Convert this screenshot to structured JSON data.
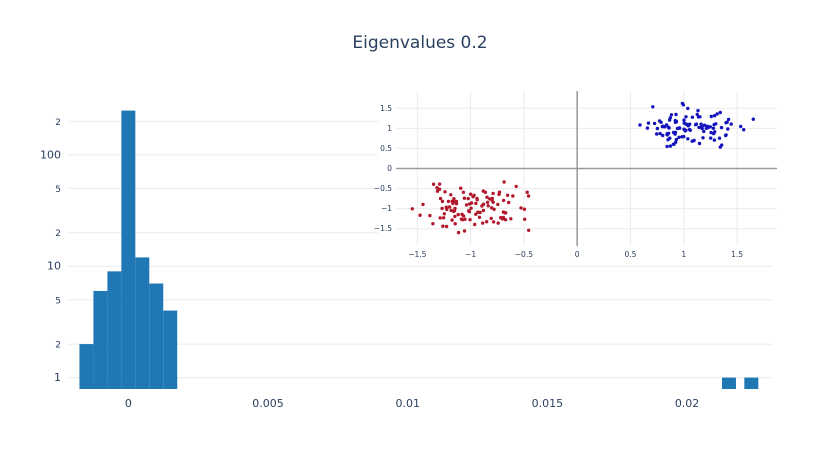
{
  "title": "Eigenvalues 0.2",
  "colors": {
    "background": "#ffffff",
    "title_text": "#2a3f5f",
    "tick_text": "#2a3f5f",
    "grid": "#ebebeb",
    "zero_line": "#999999",
    "bar": "#1f77b4",
    "cluster_negative": "#b2182b",
    "cluster_positive": "#1414bd"
  },
  "chart_data": [
    {
      "type": "bar",
      "name": "eigenvalue-histogram",
      "title": "Eigenvalues 0.2",
      "orientation": "vertical",
      "y_scale": "log",
      "grid": "horizontal-only",
      "legend": "none",
      "bar_color": "#1f77b4",
      "bin_width": 0.0005,
      "bin_centers": [
        -0.0015,
        -0.001,
        -0.0005,
        0,
        0.0005,
        0.001,
        0.0015,
        0.0215,
        0.0223
      ],
      "counts": [
        2,
        6,
        9,
        250,
        12,
        7,
        4,
        1,
        1
      ],
      "xlim": [
        -0.00216,
        0.02304
      ],
      "ylim": [
        0.79,
        345
      ],
      "x_ticks": [
        {
          "value": 0,
          "label": "0"
        },
        {
          "value": 0.005,
          "label": "0.005"
        },
        {
          "value": 0.01,
          "label": "0.01"
        },
        {
          "value": 0.015,
          "label": "0.015"
        },
        {
          "value": 0.02,
          "label": "0.02"
        }
      ],
      "y_ticks": [
        {
          "value": 1,
          "label": "1",
          "major": true
        },
        {
          "value": 2,
          "label": "2",
          "major": false
        },
        {
          "value": 5,
          "label": "5",
          "major": false
        },
        {
          "value": 10,
          "label": "10",
          "major": true
        },
        {
          "value": 20,
          "label": "2",
          "major": false
        },
        {
          "value": 50,
          "label": "5",
          "major": false
        },
        {
          "value": 100,
          "label": "100",
          "major": true
        },
        {
          "value": 200,
          "label": "2",
          "major": false
        }
      ]
    },
    {
      "type": "scatter",
      "name": "two-cluster-inset",
      "grid": "both",
      "legend": "none",
      "zero_lines": true,
      "marker_diameter": 3.4,
      "xlim": [
        -1.7,
        1.875
      ],
      "ylim": [
        -1.93,
        1.93
      ],
      "x_ticks": [
        {
          "value": -1.5,
          "label": "−1.5"
        },
        {
          "value": -1,
          "label": "−1"
        },
        {
          "value": -0.5,
          "label": "−0.5"
        },
        {
          "value": 0,
          "label": "0"
        },
        {
          "value": 0.5,
          "label": "0.5"
        },
        {
          "value": 1,
          "label": "1"
        },
        {
          "value": 1.5,
          "label": "1.5"
        }
      ],
      "y_ticks": [
        {
          "value": -1.5,
          "label": "−1.5"
        },
        {
          "value": -1,
          "label": "−1"
        },
        {
          "value": -0.5,
          "label": "−0.5"
        },
        {
          "value": 0,
          "label": "0"
        },
        {
          "value": 0.5,
          "label": "0.5"
        },
        {
          "value": 1,
          "label": "1"
        },
        {
          "value": 1.5,
          "label": "1.5"
        }
      ],
      "series": [
        {
          "name": "cluster-negative",
          "color": "#b2182b",
          "center": [
            -0.98,
            -1.0
          ],
          "std": [
            0.24,
            0.27
          ],
          "n": 110,
          "seed": 11,
          "bounds": {
            "x": [
              -1.6,
              -0.42
            ],
            "y": [
              -1.72,
              -0.3
            ]
          }
        },
        {
          "name": "cluster-positive",
          "color": "#1414bd",
          "center": [
            1.03,
            1.0
          ],
          "std": [
            0.24,
            0.24
          ],
          "n": 110,
          "seed": 29,
          "bounds": {
            "x": [
              0.55,
              1.72
            ],
            "y": [
              0.45,
              1.78
            ]
          }
        }
      ]
    }
  ]
}
